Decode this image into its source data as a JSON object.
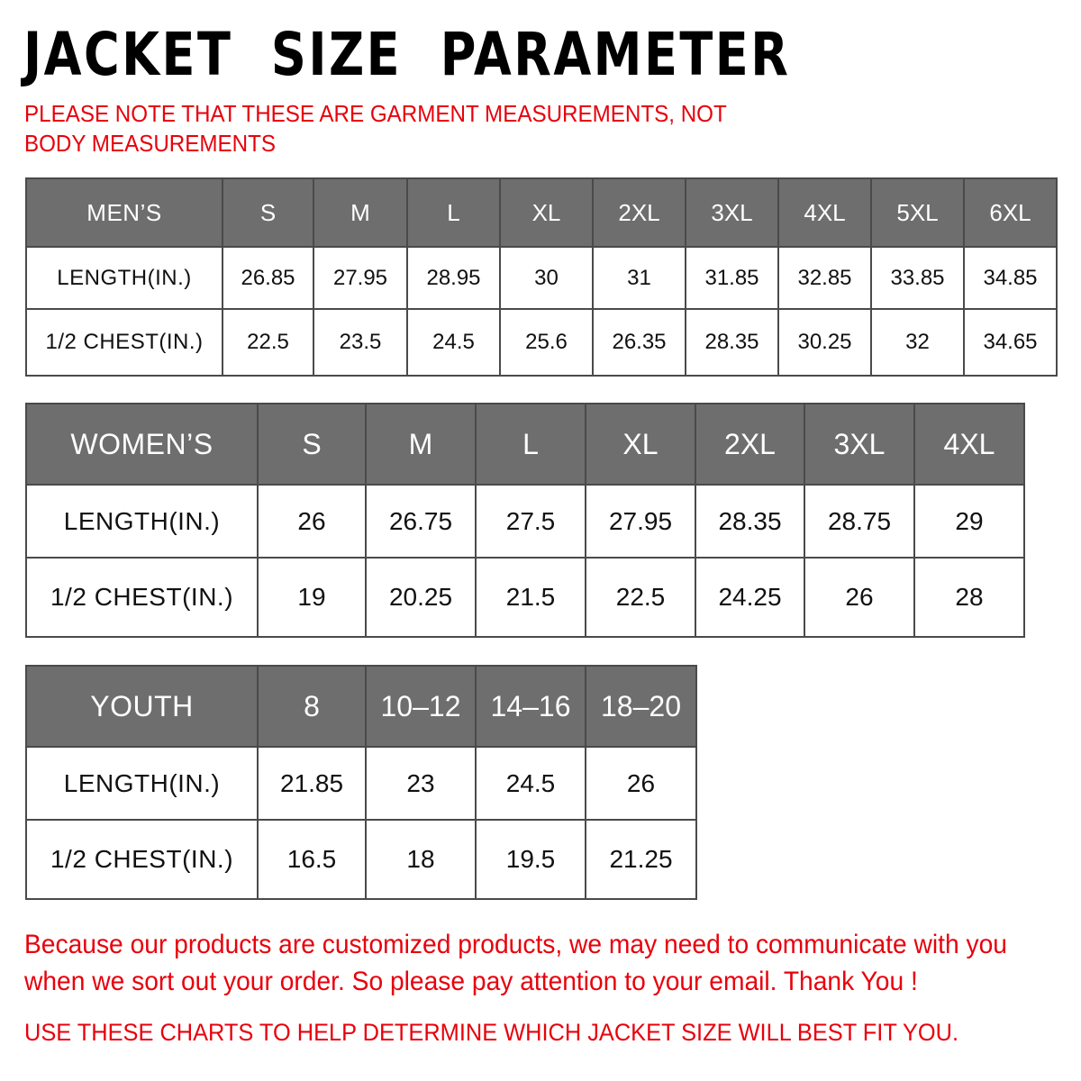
{
  "title": "JACKET  SIZE  PARAMETER",
  "note": "PLEASE NOTE THAT THESE ARE GARMENT MEASUREMENTS, NOT BODY MEASUREMENTS",
  "colors": {
    "header_bg": "#6e6e6e",
    "note_red": "#e8000b"
  },
  "tables": [
    {
      "id": "mens",
      "header": [
        "MEN’S",
        "S",
        "M",
        "L",
        "XL",
        "2XL",
        "3XL",
        "4XL",
        "5XL",
        "6XL"
      ],
      "rows": [
        [
          "LENGTH(IN.)",
          "26.85",
          "27.95",
          "28.95",
          "30",
          "31",
          "31.85",
          "32.85",
          "33.85",
          "34.85"
        ],
        [
          "1/2 CHEST(IN.)",
          "22.5",
          "23.5",
          "24.5",
          "25.6",
          "26.35",
          "28.35",
          "30.25",
          "32",
          "34.65"
        ]
      ]
    },
    {
      "id": "womens",
      "header": [
        "WOMEN’S",
        "S",
        "M",
        "L",
        "XL",
        "2XL",
        "3XL",
        "4XL"
      ],
      "rows": [
        [
          "LENGTH(IN.)",
          "26",
          "26.75",
          "27.5",
          "27.95",
          "28.35",
          "28.75",
          "29"
        ],
        [
          "1/2 CHEST(IN.)",
          "19",
          "20.25",
          "21.5",
          "22.5",
          "24.25",
          "26",
          "28"
        ]
      ]
    },
    {
      "id": "youth",
      "header": [
        "YOUTH",
        "8",
        "10–12",
        "14–16",
        "18–20"
      ],
      "rows": [
        [
          "LENGTH(IN.)",
          "21.85",
          "23",
          "24.5",
          "26"
        ],
        [
          "1/2 CHEST(IN.)",
          "16.5",
          "18",
          "19.5",
          "21.25"
        ]
      ]
    }
  ],
  "paragraph": "Because our products are customized products, we may need to communicate with you when we sort out your order. So please pay attention to your email. Thank You !",
  "footer": "USE THESE CHARTS TO HELP DETERMINE WHICH JACKET SIZE WILL BEST FIT YOU."
}
